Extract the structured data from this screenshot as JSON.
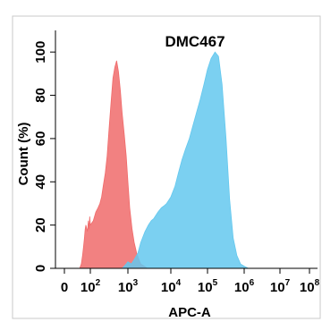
{
  "chart_data": {
    "type": "area",
    "title": "DMC467",
    "xlabel": "APC-A",
    "ylabel": "Count (%)",
    "x_scale": "log",
    "xlim": [
      0,
      100000000
    ],
    "ylim": [
      0,
      110
    ],
    "x_ticks": [
      {
        "value": 0,
        "base": "0",
        "exp": ""
      },
      {
        "value": 100,
        "base": "10",
        "exp": "2"
      },
      {
        "value": 1000,
        "base": "10",
        "exp": "3"
      },
      {
        "value": 10000,
        "base": "10",
        "exp": "4"
      },
      {
        "value": 100000,
        "base": "10",
        "exp": "5"
      },
      {
        "value": 1000000,
        "base": "10",
        "exp": "6"
      },
      {
        "value": 10000000,
        "base": "10",
        "exp": "7"
      },
      {
        "value": 100000000,
        "base": "10",
        "exp": "8"
      }
    ],
    "y_ticks": [
      0,
      20,
      40,
      60,
      80,
      100
    ],
    "series": [
      {
        "color": "#f06b6b",
        "x": [
          15,
          20,
          25,
          30,
          35,
          40,
          45,
          50,
          60,
          70,
          80,
          90,
          100,
          120,
          140,
          160,
          180,
          200,
          220,
          250,
          280,
          320,
          360,
          400,
          450,
          500,
          560,
          630,
          700,
          800,
          900,
          1000,
          1100,
          1250,
          1400,
          1600,
          1800,
          2000,
          2400,
          2800
        ],
        "y": [
          0,
          2,
          6,
          10,
          14,
          18,
          20,
          19,
          17,
          22,
          18,
          24,
          20,
          22,
          26,
          28,
          30,
          33,
          38,
          44,
          52,
          66,
          78,
          88,
          93,
          96,
          91,
          82,
          72,
          62,
          52,
          40,
          28,
          18,
          12,
          7,
          4,
          2,
          1,
          0
        ]
      },
      {
        "color": "#64c8ee",
        "x": [
          700,
          800,
          900,
          1000,
          1200,
          1400,
          1700,
          2000,
          2500,
          3000,
          3500,
          4000,
          5000,
          6000,
          7000,
          8000,
          10000,
          13000,
          16000,
          20000,
          25000,
          32000,
          40000,
          50000,
          63000,
          80000,
          100000,
          125000,
          160000,
          200000,
          250000,
          320000,
          400000,
          500000,
          630000,
          800000,
          1000000,
          1300000
        ],
        "y": [
          0,
          1,
          2,
          3,
          2,
          4,
          7,
          12,
          17,
          20,
          22,
          23,
          26,
          28,
          29,
          30,
          33,
          38,
          44,
          50,
          55,
          60,
          66,
          72,
          78,
          85,
          92,
          97,
          100,
          98,
          85,
          60,
          32,
          14,
          6,
          2,
          1,
          0
        ]
      }
    ]
  }
}
